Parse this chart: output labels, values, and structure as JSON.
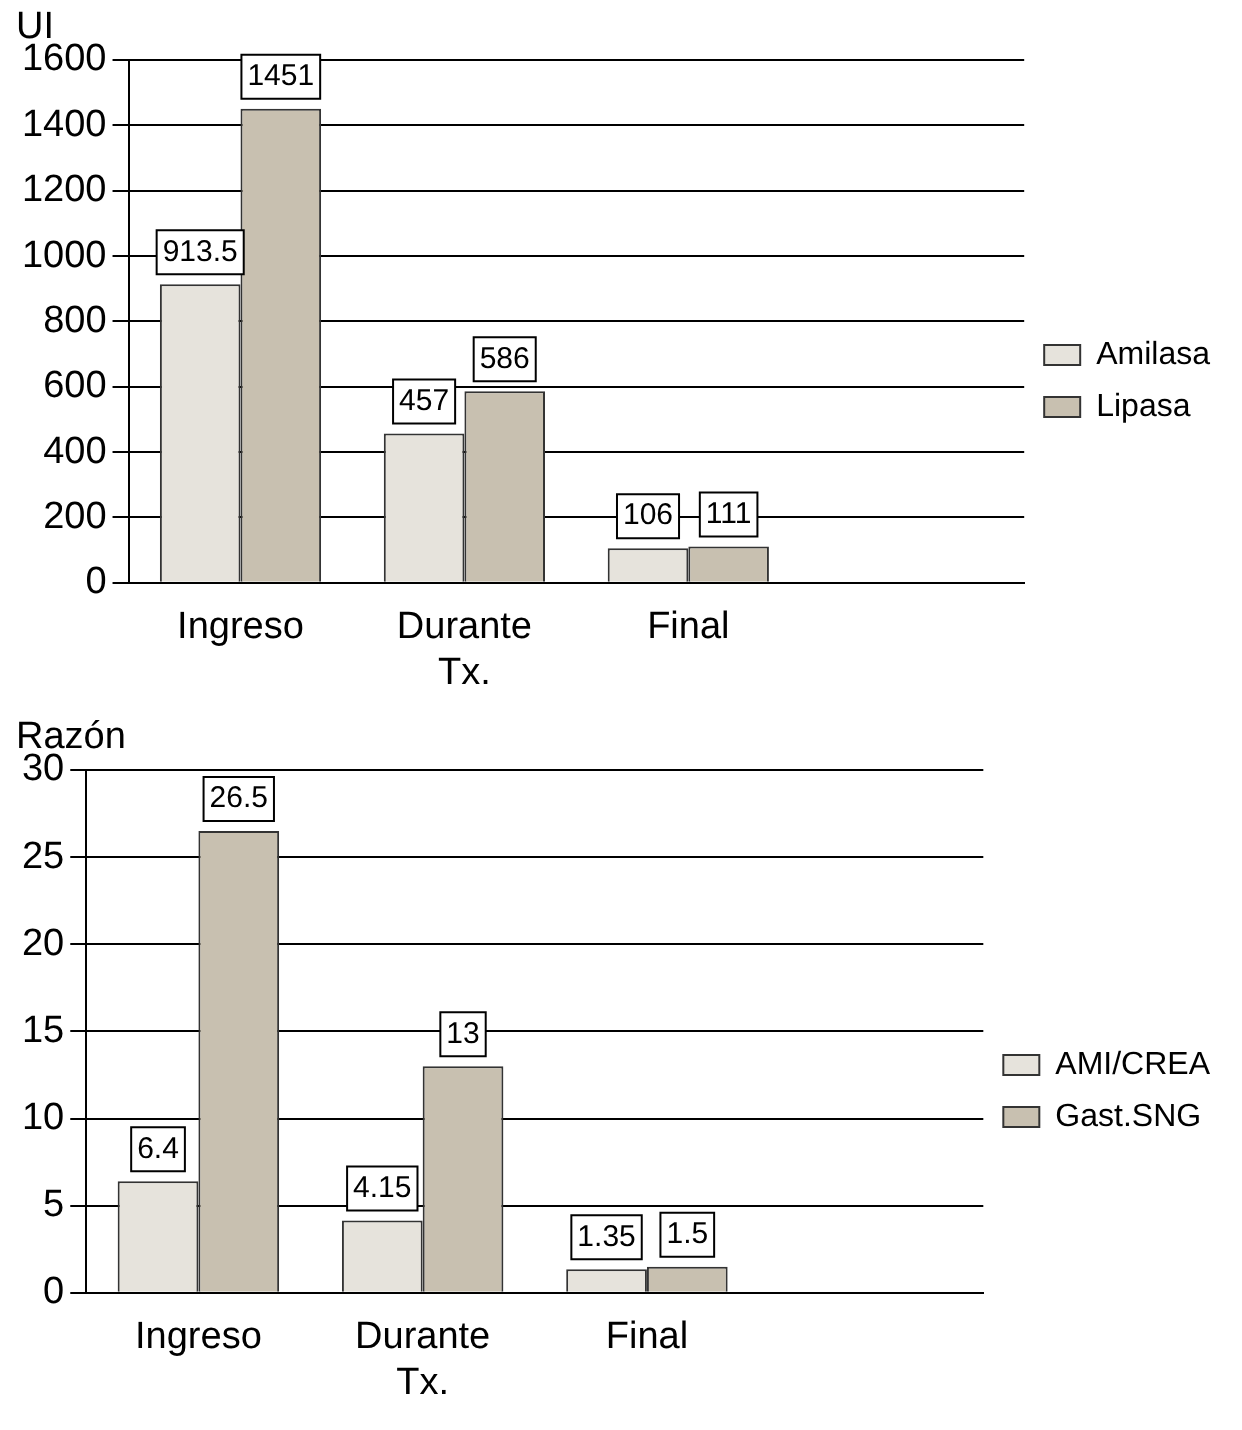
{
  "chart_data": [
    {
      "type": "bar",
      "ylabel": "UI",
      "categories": [
        "Ingreso",
        "Durante Tx.",
        "Final",
        null
      ],
      "series": [
        {
          "name": "Amilasa",
          "color": "#e6e3dc",
          "values": [
            913.5,
            457,
            106,
            null
          ]
        },
        {
          "name": "Lipasa",
          "color": "#c8c0b0",
          "values": [
            1451,
            586,
            111,
            null
          ]
        }
      ],
      "ylim": [
        0,
        1600
      ],
      "yticks": [
        0,
        200,
        400,
        600,
        800,
        1000,
        1200,
        1400,
        1600
      ],
      "grid": "y",
      "legend": "right",
      "data_labels": true
    },
    {
      "type": "bar",
      "ylabel": "Razón",
      "categories": [
        "Ingreso",
        "Durante Tx.",
        "Final",
        null
      ],
      "series": [
        {
          "name": "AMI/CREA",
          "color": "#e6e3dc",
          "values": [
            6.4,
            4.15,
            1.35,
            null
          ]
        },
        {
          "name": "Gast.SNG",
          "color": "#c8c0b0",
          "values": [
            26.5,
            13,
            1.5,
            null
          ]
        }
      ],
      "ylim": [
        0,
        30
      ],
      "yticks": [
        0,
        5,
        10,
        15,
        20,
        25,
        30
      ],
      "grid": "y",
      "legend": "right",
      "data_labels": true
    }
  ]
}
